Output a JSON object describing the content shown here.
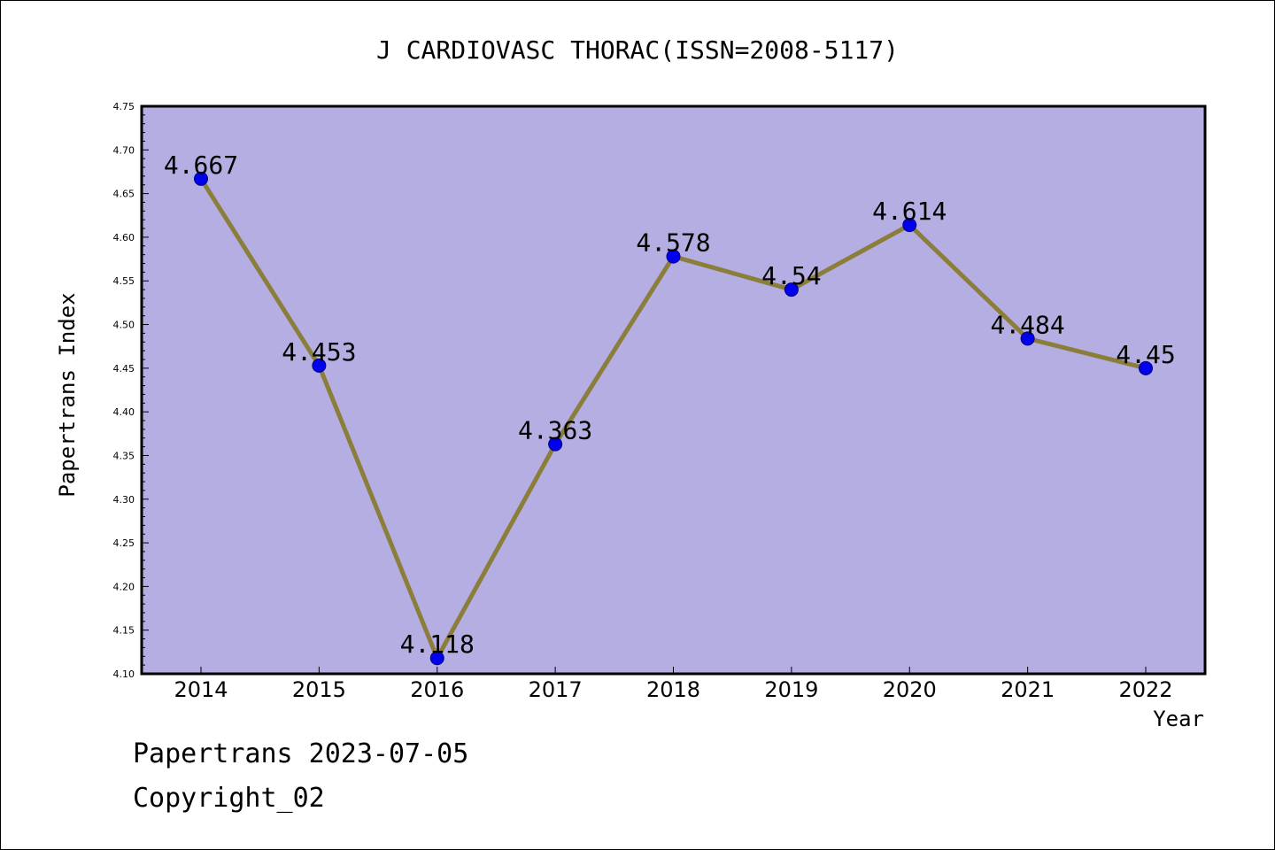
{
  "chart_data": {
    "type": "line",
    "title": "J CARDIOVASC THORAC(ISSN=2008-5117)",
    "xlabel": "Year",
    "ylabel": "Papertrans Index",
    "categories": [
      "2014",
      "2015",
      "2016",
      "2017",
      "2018",
      "2019",
      "2020",
      "2021",
      "2022"
    ],
    "series": [
      {
        "values": [
          4.667,
          4.453,
          4.118,
          4.363,
          4.578,
          4.54,
          4.614,
          4.484,
          4.45
        ],
        "labels": [
          "4.667",
          "4.453",
          "4.118",
          "4.363",
          "4.578",
          "4.54",
          "4.614",
          "4.484",
          "4.45"
        ]
      }
    ],
    "ylim": [
      4.1,
      4.75
    ],
    "yticks": [
      "4.10",
      "4.15",
      "4.20",
      "4.25",
      "4.30",
      "4.35",
      "4.40",
      "4.45",
      "4.50",
      "4.55",
      "4.60",
      "4.65",
      "4.70",
      "4.75"
    ],
    "grid": false,
    "colors": {
      "plot_background": "#b4aee2",
      "line": "#8b7d3a",
      "marker": "#0000ee",
      "marker_edge": "#000080"
    }
  },
  "footer": {
    "line1": "Papertrans 2023-07-05",
    "line2": "Copyright_02"
  }
}
